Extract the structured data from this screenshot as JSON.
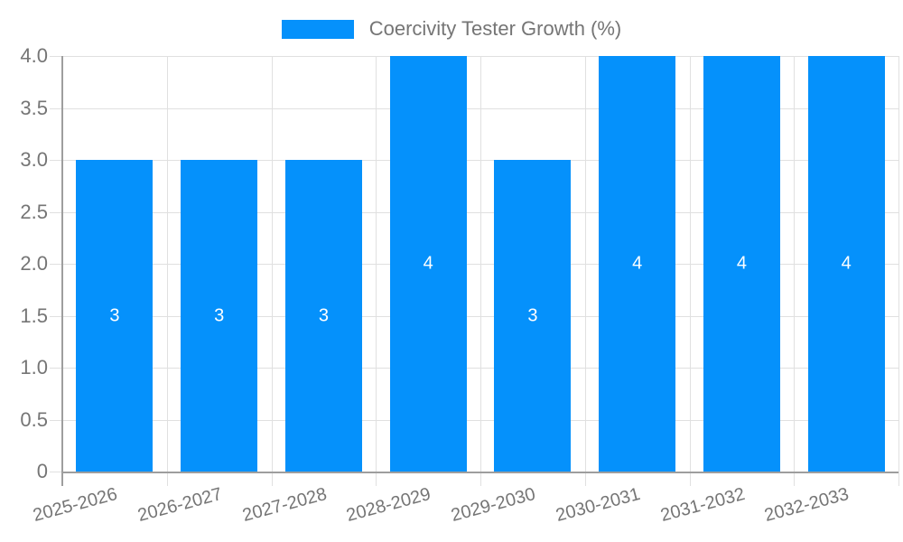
{
  "chart_data": {
    "type": "bar",
    "title": "Coercivity Tester Growth (%)",
    "categories": [
      "2025-2026",
      "2026-2027",
      "2027-2028",
      "2028-2029",
      "2029-2030",
      "2030-2031",
      "2031-2032",
      "2032-2033"
    ],
    "series": [
      {
        "name": "Coercivity Tester Growth (%)",
        "values": [
          3,
          3,
          3,
          4,
          3,
          4,
          4,
          4
        ],
        "data_labels": [
          "3",
          "3",
          "3",
          "4",
          "3",
          "4",
          "4",
          "4"
        ]
      }
    ],
    "xlabel": "",
    "ylabel": "",
    "ylim": [
      0,
      4
    ],
    "y_ticks": [
      {
        "value": 0,
        "label": "0"
      },
      {
        "value": 0.5,
        "label": "0.5"
      },
      {
        "value": 1,
        "label": "1.0"
      },
      {
        "value": 1.5,
        "label": "1.5"
      },
      {
        "value": 2,
        "label": "2.0"
      },
      {
        "value": 2.5,
        "label": "2.5"
      },
      {
        "value": 3,
        "label": "3.0"
      },
      {
        "value": 3.5,
        "label": "3.5"
      },
      {
        "value": 4,
        "label": "4.0"
      }
    ],
    "grid": true,
    "legend_position": "top",
    "colors": {
      "bar": "#0591fb",
      "grid": "#e0e0e0",
      "axis": "#9e9e9e",
      "tick_text": "#757575",
      "bar_label_text": "#ffffff",
      "background": "#ffffff"
    }
  }
}
